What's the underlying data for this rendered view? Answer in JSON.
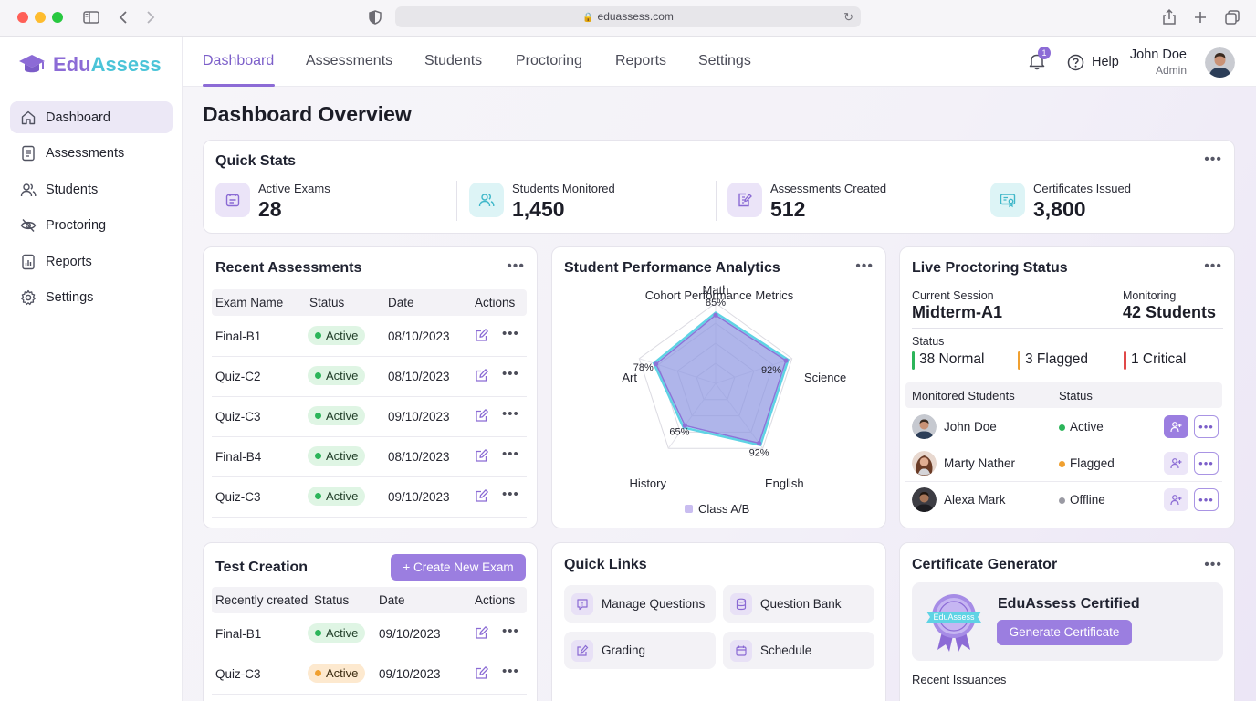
{
  "browser": {
    "url": "eduassess.com"
  },
  "app": {
    "name_part1": "Edu",
    "name_part2": "Assess"
  },
  "sidebar": {
    "items": [
      {
        "label": "Dashboard",
        "icon": "home-icon",
        "active": true
      },
      {
        "label": "Assessments",
        "icon": "document-icon"
      },
      {
        "label": "Students",
        "icon": "users-icon"
      },
      {
        "label": "Proctoring",
        "icon": "eye-off-icon"
      },
      {
        "label": "Reports",
        "icon": "report-icon"
      },
      {
        "label": "Settings",
        "icon": "gear-icon"
      }
    ]
  },
  "topnav": {
    "tabs": [
      "Dashboard",
      "Assessments",
      "Students",
      "Proctoring",
      "Reports",
      "Settings"
    ],
    "notifications": "1",
    "help": "Help",
    "user": {
      "name": "John Doe",
      "role": "Admin"
    }
  },
  "page": {
    "title": "Dashboard Overview"
  },
  "quick_stats": {
    "title": "Quick Stats",
    "items": [
      {
        "label": "Active Exams",
        "value": "28",
        "icon": "calendar-icon"
      },
      {
        "label": "Students Monitored",
        "value": "1,450",
        "icon": "users-icon"
      },
      {
        "label": "Assessments Created",
        "value": "512",
        "icon": "edit-document-icon"
      },
      {
        "label": "Certificates Issued",
        "value": "3,800",
        "icon": "certificate-icon"
      }
    ]
  },
  "recent_assessments": {
    "title": "Recent Assessments",
    "columns": [
      "Exam Name",
      "Status",
      "Date",
      "Actions"
    ],
    "rows": [
      {
        "name": "Final-B1",
        "status": "Active",
        "date": "08/10/2023"
      },
      {
        "name": "Quiz-C2",
        "status": "Active",
        "date": "08/10/2023"
      },
      {
        "name": "Quiz-C3",
        "status": "Active",
        "date": "09/10/2023"
      },
      {
        "name": "Final-B4",
        "status": "Active",
        "date": "08/10/2023"
      },
      {
        "name": "Quiz-C3",
        "status": "Active",
        "date": "09/10/2023"
      }
    ]
  },
  "performance": {
    "title": "Student Performance Analytics",
    "subtitle": "Cohort Performance Metrics",
    "legend": "Class A/B",
    "color_outer": "#5fd3e4",
    "color_inner": "#9b85e0"
  },
  "chart_data": {
    "type": "radar",
    "title": "Cohort Performance Metrics",
    "categories": [
      "Math",
      "Science",
      "English",
      "History",
      "Art"
    ],
    "series": [
      {
        "name": "Class A/B",
        "values": [
          85,
          92,
          92,
          65,
          78
        ]
      }
    ],
    "range": [
      0,
      100
    ],
    "legend": "bottom"
  },
  "proctoring": {
    "title": "Live Proctoring Status",
    "session_label": "Current Session",
    "session_value": "Midterm-A1",
    "monitoring_label": "Monitoring",
    "monitoring_value": "42 Students",
    "status_label": "Status",
    "normal": "38 Normal",
    "flagged": "3 Flagged",
    "critical": "1 Critical",
    "columns": [
      "Monitored Students",
      "Status"
    ],
    "students": [
      {
        "name": "John Doe",
        "status": "Active"
      },
      {
        "name": "Marty Nather",
        "status": "Flagged"
      },
      {
        "name": "Alexa Mark",
        "status": "Offline"
      }
    ]
  },
  "test_creation": {
    "title": "Test Creation",
    "button": "+ Create New Exam",
    "columns": [
      "Recently created",
      "Status",
      "Date",
      "Actions"
    ],
    "rows": [
      {
        "name": "Final-B1",
        "status": "Active",
        "date": "09/10/2023"
      },
      {
        "name": "Quiz-C3",
        "status": "Active",
        "date": "09/10/2023"
      }
    ]
  },
  "quick_links": {
    "title": "Quick Links",
    "items": [
      {
        "label": "Manage Questions",
        "icon": "question-icon"
      },
      {
        "label": "Question Bank",
        "icon": "database-icon"
      },
      {
        "label": "Grading",
        "icon": "edit-icon"
      },
      {
        "label": "Schedule",
        "icon": "calendar-icon"
      }
    ]
  },
  "certificate": {
    "title": "Certificate Generator",
    "badge_text": "EduAssess",
    "cert_title": "EduAssess Certified",
    "button": "Generate Certificate",
    "recent_label": "Recent Issuances"
  },
  "colors": {
    "accent": "#8c6bd6",
    "teal": "#4bc4d8",
    "success": "#2cb55a",
    "warning": "#f0a030",
    "danger": "#e04848"
  }
}
